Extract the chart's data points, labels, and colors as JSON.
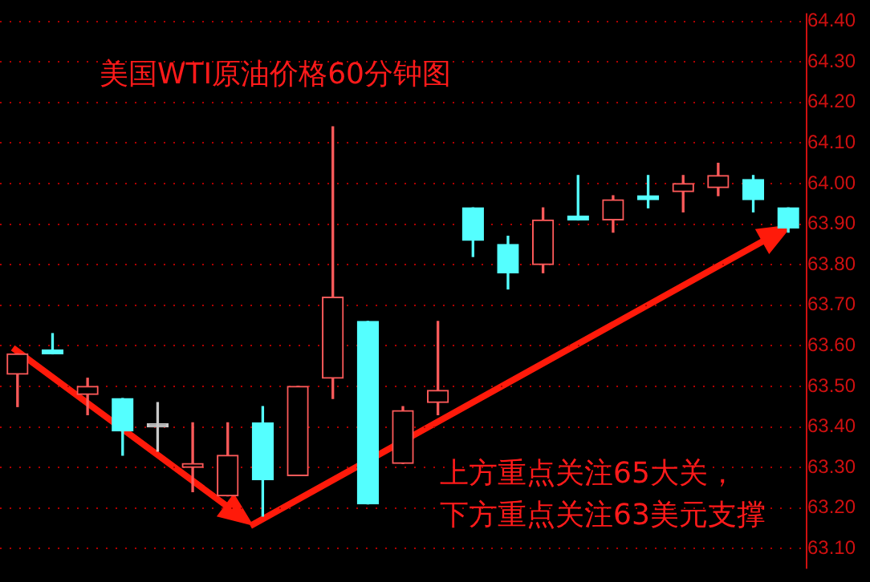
{
  "chart_data": {
    "type": "candlestick",
    "title": "美国WTI原油价格60分钟图",
    "annotations": [
      "上方重点关注65大关，",
      "下方重点关注63美元支撑"
    ],
    "categories": [
      null,
      null,
      null,
      null,
      null,
      null,
      null,
      null,
      null,
      null,
      null,
      null,
      null,
      null,
      null,
      null,
      null,
      null,
      null,
      null,
      null,
      null,
      null
    ],
    "ohlc": [
      [
        63.53,
        63.58,
        63.45,
        63.58
      ],
      [
        63.59,
        63.63,
        63.58,
        63.58
      ],
      [
        63.48,
        63.52,
        63.43,
        63.5
      ],
      [
        63.47,
        63.47,
        63.33,
        63.39
      ],
      [
        63.4,
        63.46,
        63.34,
        63.4
      ],
      [
        63.3,
        63.41,
        63.24,
        63.31
      ],
      [
        63.23,
        63.41,
        63.23,
        63.33
      ],
      [
        63.41,
        63.45,
        63.18,
        63.27
      ],
      [
        63.28,
        63.5,
        63.28,
        63.5
      ],
      [
        63.52,
        64.14,
        63.47,
        63.72
      ],
      [
        63.66,
        63.66,
        63.21,
        63.21
      ],
      [
        63.31,
        63.45,
        63.31,
        63.44
      ],
      [
        63.46,
        63.66,
        63.43,
        63.49
      ],
      [
        63.94,
        63.94,
        63.82,
        63.86
      ],
      [
        63.85,
        63.87,
        63.74,
        63.78
      ],
      [
        63.8,
        63.94,
        63.78,
        63.91
      ],
      [
        63.92,
        64.02,
        63.91,
        63.91
      ],
      [
        63.91,
        63.97,
        63.88,
        63.96
      ],
      [
        63.97,
        64.02,
        63.94,
        63.96
      ],
      [
        63.98,
        64.02,
        63.93,
        64.0
      ],
      [
        63.99,
        64.05,
        63.97,
        64.02
      ],
      [
        64.01,
        64.02,
        63.93,
        63.96
      ],
      [
        63.94,
        63.94,
        63.88,
        63.89
      ]
    ],
    "colors": [
      "#ff5a5a",
      "#54ffff",
      "#ff5a5a",
      "#54ffff",
      "#c8c8c8",
      "#ff5a5a",
      "#ff5a5a",
      "#54ffff",
      "#ff5a5a",
      "#ff5a5a",
      "#54ffff",
      "#ff5a5a",
      "#ff5a5a",
      "#54ffff",
      "#54ffff",
      "#ff5a5a",
      "#54ffff",
      "#ff5a5a",
      "#54ffff",
      "#ff5a5a",
      "#ff5a5a",
      "#54ffff",
      "#54ffff"
    ],
    "ylim": [
      63.05,
      64.42
    ],
    "yticks": [
      {
        "value": 63.1,
        "label": "63.10"
      },
      {
        "value": 63.2,
        "label": "63.20"
      },
      {
        "value": 63.3,
        "label": "63.30"
      },
      {
        "value": 63.4,
        "label": "63.40"
      },
      {
        "value": 63.5,
        "label": "63.50"
      },
      {
        "value": 63.6,
        "label": "63.60"
      },
      {
        "value": 63.7,
        "label": "63.70"
      },
      {
        "value": 63.8,
        "label": "63.80"
      },
      {
        "value": 63.9,
        "label": "63.90"
      },
      {
        "value": 64.0,
        "label": "64.00"
      },
      {
        "value": 64.1,
        "label": "64.10"
      },
      {
        "value": 64.2,
        "label": "64.20"
      },
      {
        "value": 64.3,
        "label": "64.30"
      },
      {
        "value": 64.4,
        "label": "64.40"
      }
    ],
    "grid": "y",
    "legend": false
  }
}
